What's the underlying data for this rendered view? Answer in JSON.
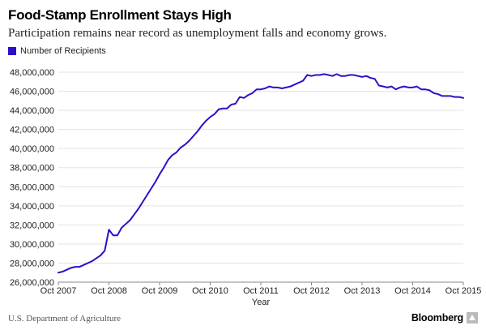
{
  "header": {
    "title": "Food-Stamp Enrollment Stays High",
    "subtitle": "Participation remains near record as unemployment falls and economy grows."
  },
  "footer": {
    "source": "U.S. Department of Agriculture",
    "logo_text": "Bloomberg"
  },
  "colors": {
    "line": "#2a11c9",
    "grid": "#e3e3e3",
    "axis": "#888888"
  },
  "chart_data": {
    "type": "line",
    "xlabel": "Year",
    "ylabel": "",
    "legend": "top-left",
    "grid": true,
    "ylim": [
      26000000,
      48000000
    ],
    "xlim": [
      "2007-10",
      "2015-10"
    ],
    "y_ticks": [
      26000000,
      28000000,
      30000000,
      32000000,
      34000000,
      36000000,
      38000000,
      40000000,
      42000000,
      44000000,
      46000000,
      48000000
    ],
    "y_tick_labels": [
      "26,000,000",
      "28,000,000",
      "30,000,000",
      "32,000,000",
      "34,000,000",
      "36,000,000",
      "38,000,000",
      "40,000,000",
      "42,000,000",
      "44,000,000",
      "46,000,000",
      "48,000,000"
    ],
    "x_ticks": [
      "2007-10",
      "2008-10",
      "2009-10",
      "2010-10",
      "2011-10",
      "2012-10",
      "2013-10",
      "2014-10",
      "2015-10"
    ],
    "x_tick_labels": [
      "Oct 2007",
      "Oct 2008",
      "Oct 2009",
      "Oct 2010",
      "Oct 2011",
      "Oct 2012",
      "Oct 2013",
      "Oct 2014",
      "Oct 2015"
    ],
    "series": [
      {
        "name": "Number of Recipients",
        "color": "#2a11c9",
        "x": [
          "2007-10",
          "2007-11",
          "2007-12",
          "2008-01",
          "2008-02",
          "2008-03",
          "2008-04",
          "2008-05",
          "2008-06",
          "2008-07",
          "2008-08",
          "2008-09",
          "2008-10",
          "2008-11",
          "2008-12",
          "2009-01",
          "2009-02",
          "2009-03",
          "2009-04",
          "2009-05",
          "2009-06",
          "2009-07",
          "2009-08",
          "2009-09",
          "2009-10",
          "2009-11",
          "2009-12",
          "2010-01",
          "2010-02",
          "2010-03",
          "2010-04",
          "2010-05",
          "2010-06",
          "2010-07",
          "2010-08",
          "2010-09",
          "2010-10",
          "2010-11",
          "2010-12",
          "2011-01",
          "2011-02",
          "2011-03",
          "2011-04",
          "2011-05",
          "2011-06",
          "2011-07",
          "2011-08",
          "2011-09",
          "2011-10",
          "2011-11",
          "2011-12",
          "2012-01",
          "2012-02",
          "2012-03",
          "2012-04",
          "2012-05",
          "2012-06",
          "2012-07",
          "2012-08",
          "2012-09",
          "2012-10",
          "2012-11",
          "2012-12",
          "2013-01",
          "2013-02",
          "2013-03",
          "2013-04",
          "2013-05",
          "2013-06",
          "2013-07",
          "2013-08",
          "2013-09",
          "2013-10",
          "2013-11",
          "2013-12",
          "2014-01",
          "2014-02",
          "2014-03",
          "2014-04",
          "2014-05",
          "2014-06",
          "2014-07",
          "2014-08",
          "2014-09",
          "2014-10",
          "2014-11",
          "2014-12",
          "2015-01",
          "2015-02",
          "2015-03",
          "2015-04",
          "2015-05",
          "2015-06",
          "2015-07",
          "2015-08",
          "2015-09",
          "2015-10"
        ],
        "values": [
          27000000,
          27100000,
          27300000,
          27500000,
          27600000,
          27600000,
          27800000,
          28000000,
          28200000,
          28500000,
          28800000,
          29300000,
          31500000,
          30900000,
          30900000,
          31700000,
          32100000,
          32500000,
          33100000,
          33700000,
          34400000,
          35100000,
          35800000,
          36500000,
          37300000,
          38000000,
          38800000,
          39300000,
          39600000,
          40100000,
          40400000,
          40800000,
          41300000,
          41800000,
          42400000,
          42900000,
          43300000,
          43600000,
          44100000,
          44200000,
          44200000,
          44600000,
          44700000,
          45400000,
          45300000,
          45600000,
          45800000,
          46200000,
          46200000,
          46300000,
          46500000,
          46400000,
          46400000,
          46300000,
          46400000,
          46500000,
          46700000,
          46900000,
          47100000,
          47700000,
          47600000,
          47700000,
          47700000,
          47800000,
          47700000,
          47600000,
          47800000,
          47600000,
          47600000,
          47700000,
          47700000,
          47600000,
          47500000,
          47600000,
          47400000,
          47300000,
          46600000,
          46500000,
          46400000,
          46500000,
          46200000,
          46400000,
          46500000,
          46400000,
          46400000,
          46500000,
          46200000,
          46200000,
          46100000,
          45800000,
          45700000,
          45500000,
          45500000,
          45500000,
          45400000,
          45400000,
          45300000
        ]
      }
    ]
  }
}
